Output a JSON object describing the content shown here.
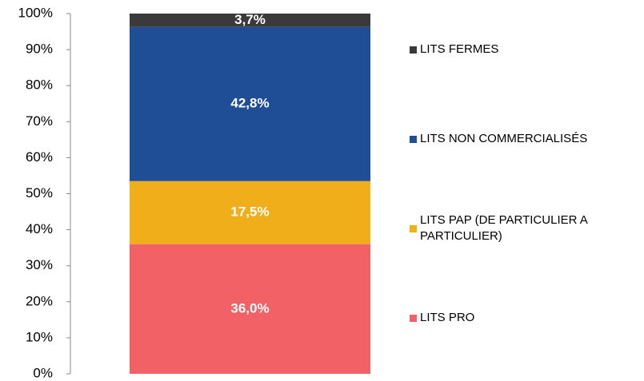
{
  "chart_data": {
    "type": "stacked-bar",
    "categories": [
      null
    ],
    "series": [
      {
        "name": "LITS PRO",
        "color": "#f26166",
        "values": [
          36.0
        ],
        "value_labels": [
          "36,0%"
        ]
      },
      {
        "name": "LITS PAP (DE PARTICULIER A PARTICULIER)",
        "color": "#f0ae1a",
        "values": [
          17.5
        ],
        "value_labels": [
          "17,5%"
        ]
      },
      {
        "name": "LITS NON COMMERCIALISÉS",
        "color": "#1f4e96",
        "values": [
          42.8
        ],
        "value_labels": [
          "42,8%"
        ]
      },
      {
        "name": "LITS FERMES",
        "color": "#3a3a3a",
        "values": [
          3.7
        ],
        "value_labels": [
          "3,7%"
        ]
      }
    ],
    "ylim": [
      0,
      100
    ],
    "yticks": [
      {
        "value": 0,
        "label": "0%"
      },
      {
        "value": 10,
        "label": "10%"
      },
      {
        "value": 20,
        "label": "20%"
      },
      {
        "value": 30,
        "label": "30%"
      },
      {
        "value": 40,
        "label": "40%"
      },
      {
        "value": 50,
        "label": "50%"
      },
      {
        "value": 60,
        "label": "60%"
      },
      {
        "value": 70,
        "label": "70%"
      },
      {
        "value": 80,
        "label": "80%"
      },
      {
        "value": 90,
        "label": "90%"
      },
      {
        "value": 100,
        "label": "100%"
      }
    ],
    "legend": "right"
  }
}
